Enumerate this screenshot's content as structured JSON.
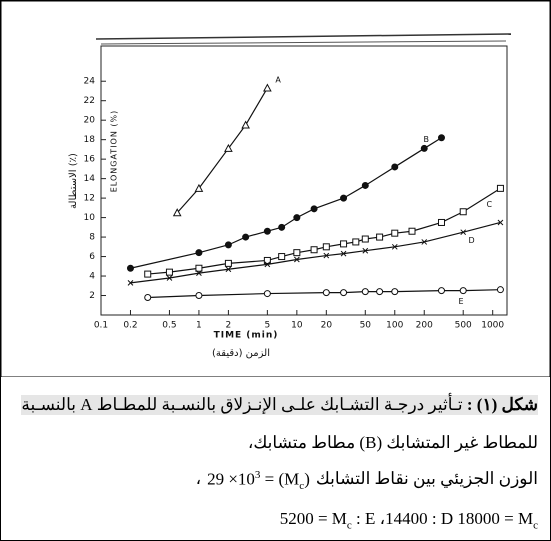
{
  "chart_data": {
    "type": "line",
    "xlabel": "TIME (min)",
    "xlabel_ar": "الزمن (دقيقة)",
    "ylabel": "ELONGATION (%)",
    "ylabel_ar": "الاستطالة (٪)",
    "xscale": "log",
    "xlim": [
      0.1,
      1400
    ],
    "ylim": [
      0,
      27
    ],
    "xticks": [
      0.1,
      0.2,
      0.5,
      1,
      2,
      5,
      10,
      20,
      50,
      100,
      200,
      500,
      1000
    ],
    "yticks": [
      2,
      4,
      6,
      8,
      10,
      12,
      14,
      16,
      18,
      20,
      22,
      24
    ],
    "color": "#111111",
    "series": [
      {
        "name": "A",
        "marker": "triangle",
        "x": [
          0.6,
          1,
          2,
          3,
          5
        ],
        "values": [
          10.5,
          13,
          17.1,
          19.5,
          23.3
        ]
      },
      {
        "name": "B",
        "marker": "filled-circle",
        "x": [
          0.2,
          1,
          2,
          3,
          5,
          7,
          10,
          15,
          30,
          50,
          100,
          200,
          300
        ],
        "values": [
          4.8,
          6.4,
          7.2,
          8,
          8.6,
          9,
          10,
          10.9,
          12,
          13.3,
          15.2,
          17.1,
          18.2
        ]
      },
      {
        "name": "C",
        "marker": "square",
        "x": [
          0.3,
          0.5,
          1,
          2,
          5,
          7,
          10,
          15,
          20,
          30,
          40,
          50,
          70,
          100,
          150,
          300,
          500,
          1200
        ],
        "values": [
          4.2,
          4.4,
          4.8,
          5.3,
          5.6,
          6,
          6.4,
          6.7,
          7,
          7.3,
          7.5,
          7.8,
          8,
          8.4,
          8.6,
          9.5,
          10.6,
          13
        ]
      },
      {
        "name": "D",
        "marker": "cross",
        "x": [
          0.2,
          0.5,
          1,
          2,
          5,
          10,
          20,
          30,
          50,
          100,
          200,
          500,
          1200
        ],
        "values": [
          3.3,
          3.8,
          4.3,
          4.7,
          5.2,
          5.7,
          6.1,
          6.3,
          6.6,
          7,
          7.5,
          8.5,
          9.5
        ]
      },
      {
        "name": "E",
        "marker": "circle",
        "x": [
          0.3,
          1,
          5,
          20,
          30,
          50,
          70,
          100,
          300,
          500,
          1200
        ],
        "values": [
          1.8,
          2,
          2.2,
          2.3,
          2.3,
          2.4,
          2.4,
          2.4,
          2.5,
          2.5,
          2.6
        ]
      }
    ]
  },
  "caption": {
    "label": "شكل (١) :",
    "line1": "تـأثير درجـة التشـابك علـى الإنـزلاق بالنسـبة للمطـاط A بالنسـبة",
    "line2": "للمطاط غير المتشابك (B) مطاط متشابك،",
    "line3": {
      "text": "الوزن الجزيئي بين نقاط التشابك",
      "base": "29 ×10",
      "exp": "3",
      "eq": " = (M",
      "sub": "c",
      "close": ")",
      "comma": "،"
    },
    "line4": {
      "a": "5200 = M",
      "a_sub": "c",
      "b": " : E ،14400 : D 18000 = M",
      "b_sub": "c"
    }
  }
}
